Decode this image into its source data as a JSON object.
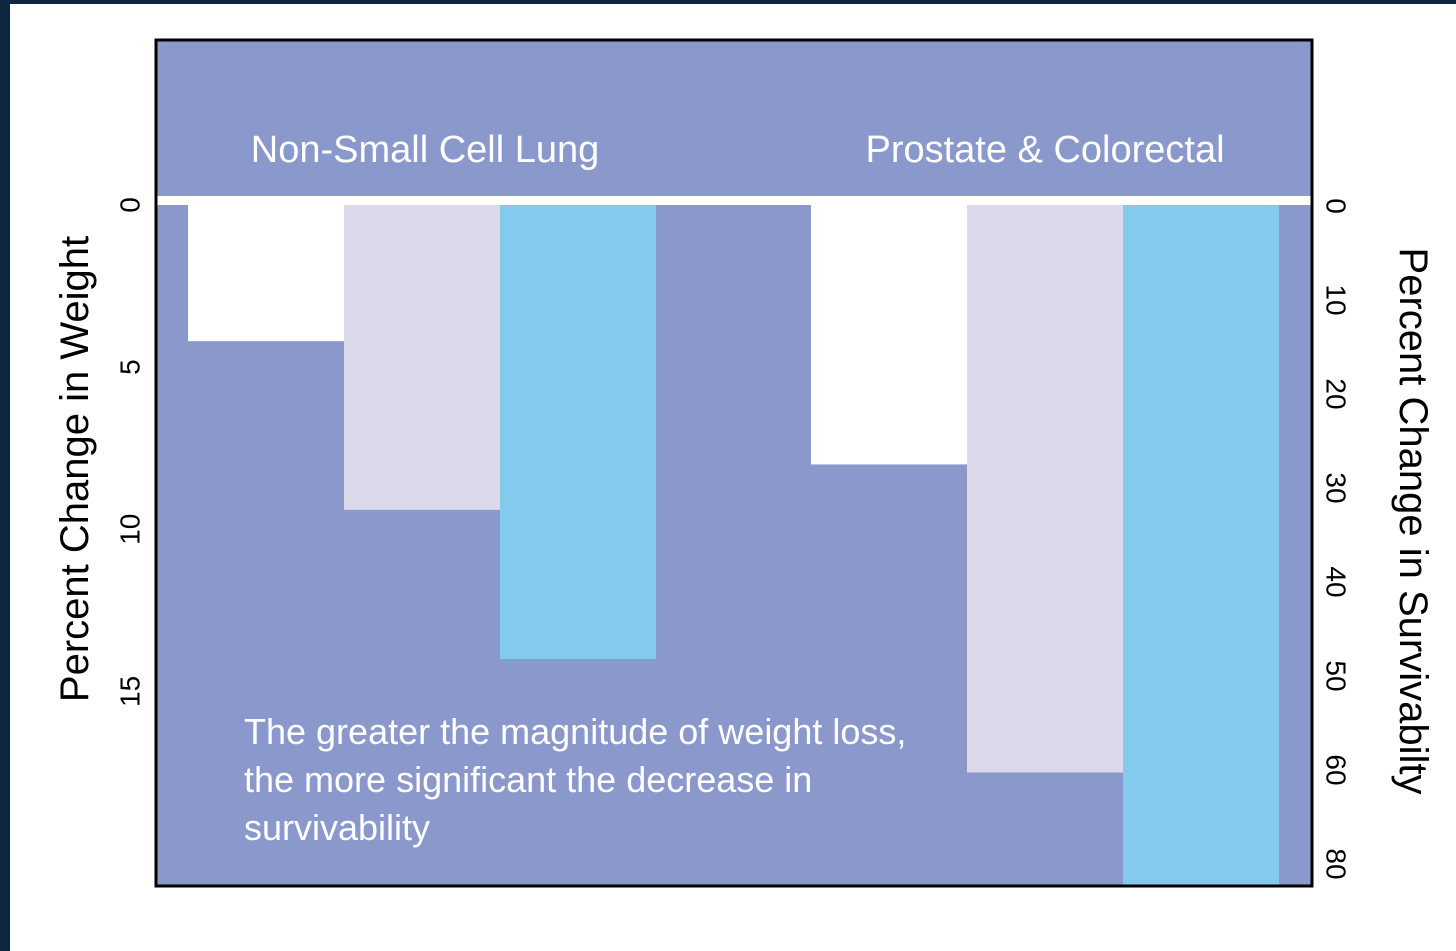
{
  "chart_data": {
    "type": "bar",
    "categories": [
      "Non-Small Cell Lung",
      "Prostate & Colorectal"
    ],
    "series": [
      {
        "values": [
          4.2,
          8.0
        ]
      },
      {
        "values": [
          9.4,
          17.5
        ]
      },
      {
        "values": [
          14.0,
          21.0
        ]
      }
    ],
    "ylabel": "Percent Change in Weight",
    "y2label": "Percent Change in Survivabilty",
    "ylim": [
      0,
      21
    ],
    "yticks": [
      0,
      5,
      10,
      15
    ],
    "y2lim": [
      0,
      84
    ],
    "y2ticks": [
      0,
      10,
      20,
      30,
      40,
      50,
      60,
      80
    ],
    "annotation": [
      "The greater the magnitude of weight loss,",
      "the more significant the decrease in",
      "survivability"
    ],
    "colors": {
      "background": "#8a98cc",
      "series": [
        "#ffffff",
        "#dcdaea",
        "#84caee"
      ],
      "baseline": "#ffffff",
      "text_light": "#ffffff",
      "text_dark": "#000000"
    },
    "grid": false,
    "legend": "none"
  }
}
